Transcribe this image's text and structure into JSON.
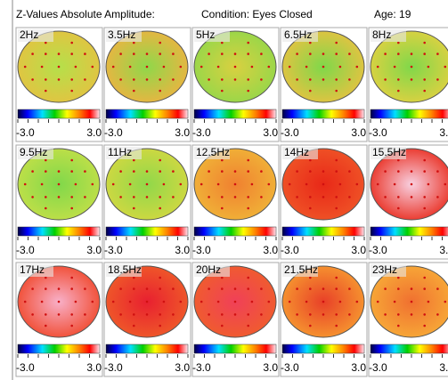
{
  "header": {
    "title": "Z-Values Absolute Amplitude:",
    "condition": "Condition: Eyes Closed",
    "age": "Age: 19"
  },
  "scale": {
    "min": "-3.0",
    "max": "3.0"
  },
  "panels": [
    {
      "label": "2Hz",
      "colors": [
        "#b5e04a",
        "#e8c040"
      ]
    },
    {
      "label": "3.5Hz",
      "colors": [
        "#8fd84a",
        "#f5b040"
      ]
    },
    {
      "label": "5Hz",
      "colors": [
        "#d9d040",
        "#8fd84a"
      ]
    },
    {
      "label": "6.5Hz",
      "colors": [
        "#7fd84a",
        "#f0c040"
      ]
    },
    {
      "label": "8Hz",
      "colors": [
        "#80d84a",
        "#e8d040"
      ]
    },
    {
      "label": "9.5Hz",
      "colors": [
        "#80d84a",
        "#c8e048"
      ]
    },
    {
      "label": "11Hz",
      "colors": [
        "#90d84a",
        "#d8d840"
      ]
    },
    {
      "label": "12.5Hz",
      "colors": [
        "#f08030",
        "#f0b838"
      ]
    },
    {
      "label": "14Hz",
      "colors": [
        "#e82818",
        "#f05828"
      ]
    },
    {
      "label": "15.5Hz",
      "colors": [
        "#f8d0e0",
        "#e82010"
      ]
    },
    {
      "label": "17Hz",
      "colors": [
        "#f8b0c8",
        "#f04020"
      ]
    },
    {
      "label": "18.5Hz",
      "colors": [
        "#e82030",
        "#f06028"
      ]
    },
    {
      "label": "20Hz",
      "colors": [
        "#f04058",
        "#f06028"
      ]
    },
    {
      "label": "21.5Hz",
      "colors": [
        "#e84028",
        "#f8a030"
      ]
    },
    {
      "label": "23Hz",
      "colors": [
        "#f07030",
        "#f8b038"
      ]
    }
  ]
}
